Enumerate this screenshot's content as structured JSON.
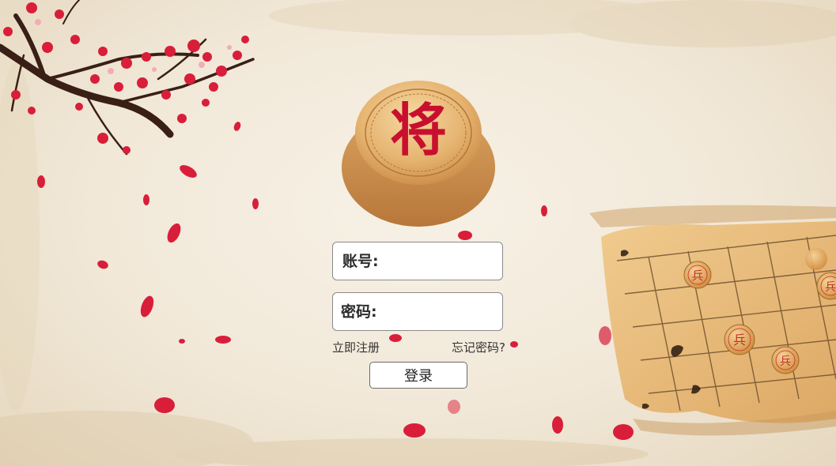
{
  "logo": {
    "piece_character": "将",
    "piece_icon": "xiangqi-general-piece-icon"
  },
  "login_form": {
    "account_label": "账号:",
    "password_label": "密码:",
    "account_value": "",
    "password_value": "",
    "register_link": "立即注册",
    "forgot_password_link": "忘记密码?",
    "login_button": "登录"
  },
  "decor": {
    "board_pieces": [
      "兵",
      "兵",
      "兵",
      "兵"
    ],
    "colors": {
      "blossom": "#d91e3a",
      "paper": "#f1e8d8",
      "board": "#e8b96a",
      "piece_red": "#c8102e"
    }
  }
}
